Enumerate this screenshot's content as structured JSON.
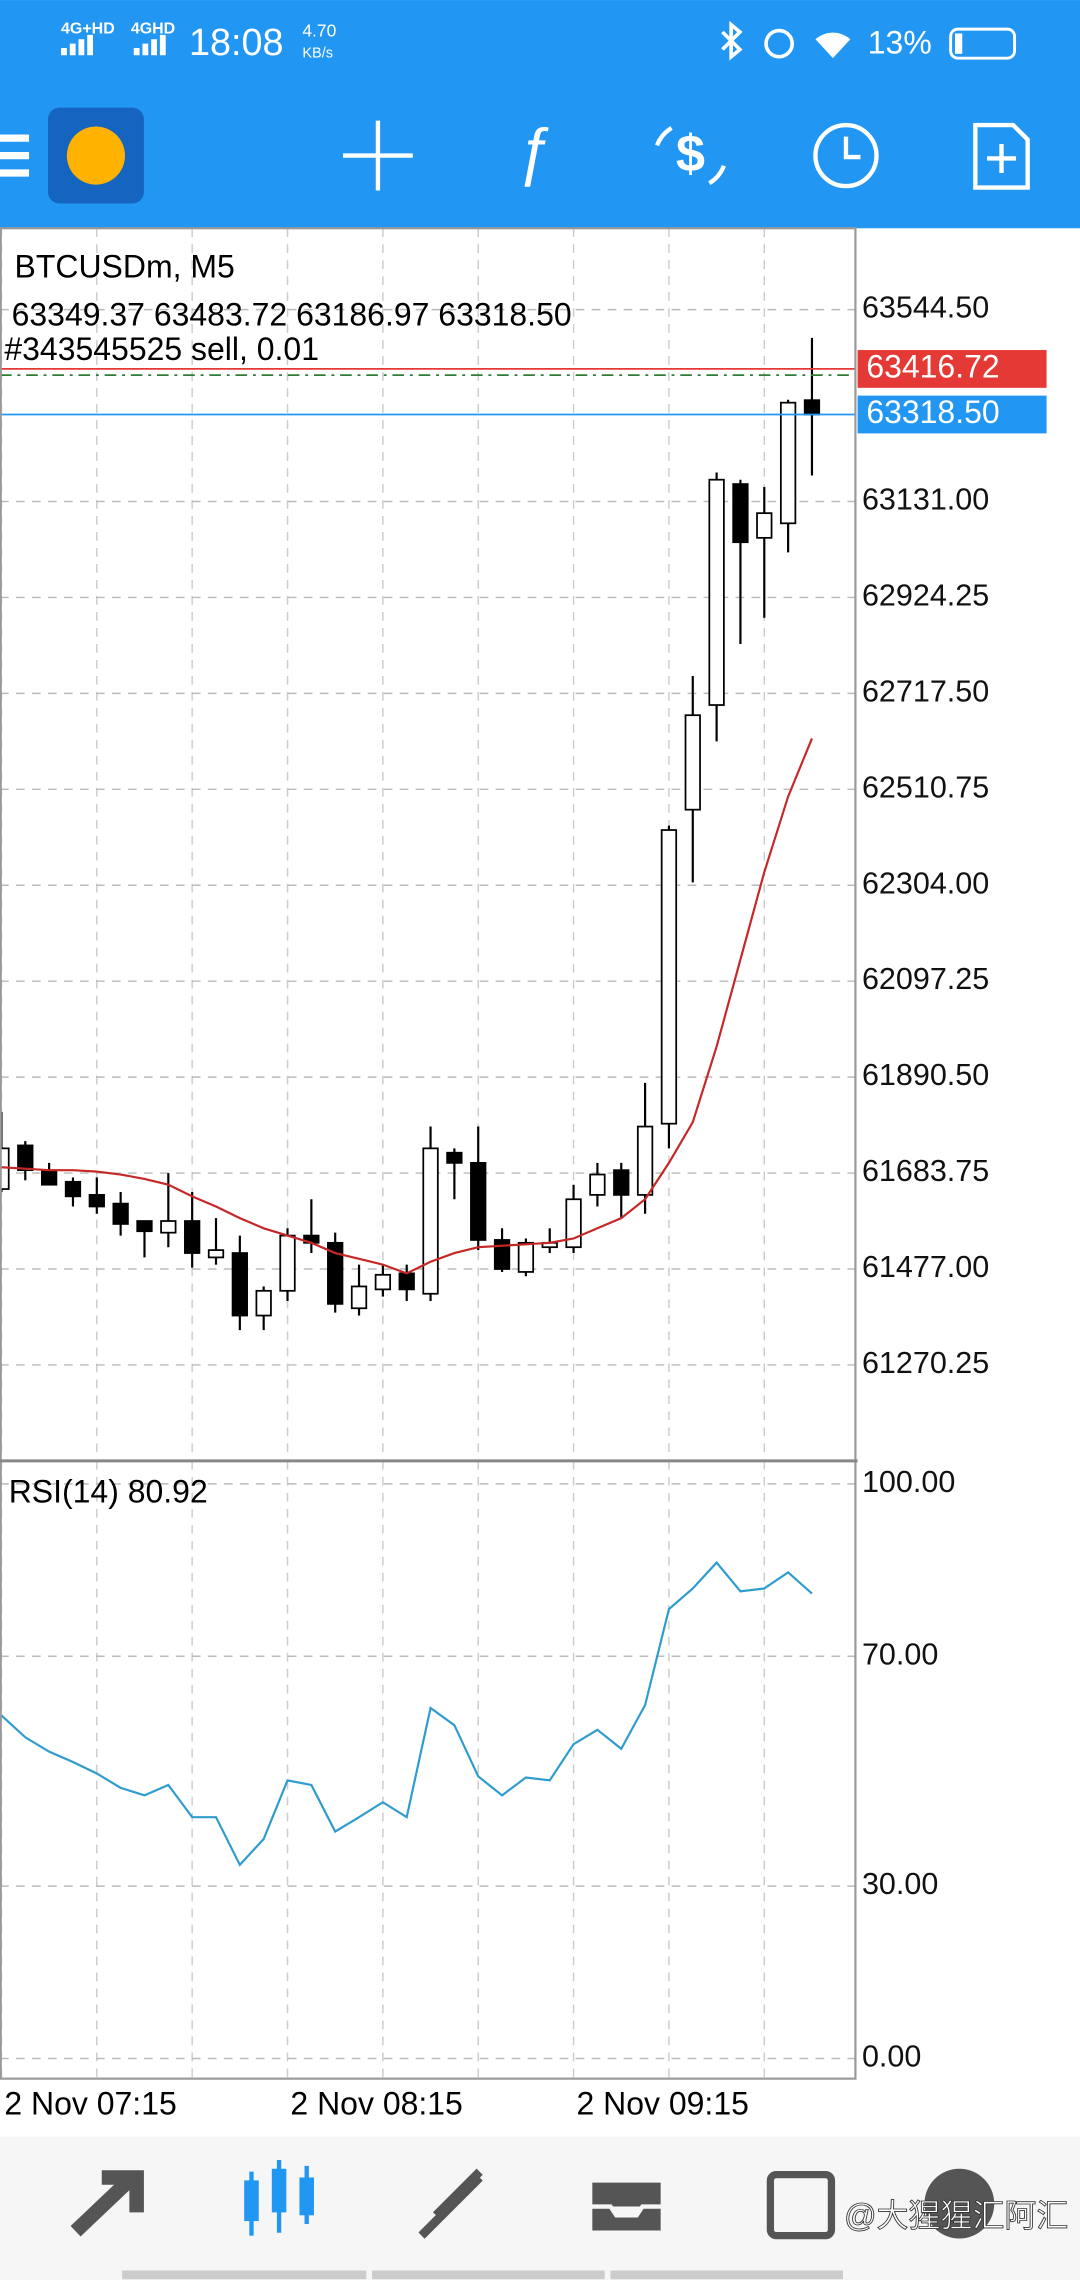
{
  "status_bar": {
    "network_1": "4G+HD",
    "network_2": "4GHD",
    "time": "18:08",
    "speed": "4.70",
    "speed_unit": "KB/s",
    "battery": "13%"
  },
  "chart_data": [
    {
      "type": "candlestick",
      "title": "BTCUSDm, M5",
      "ohlc_text": "63349.37 63483.72 63186.97 63318.50",
      "order_label": "#343545525 sell, 0.01",
      "categories": [
        "2 Nov 07:15",
        null,
        null,
        null,
        null,
        null,
        null,
        null,
        null,
        null,
        null,
        null,
        "2 Nov 08:15",
        null,
        null,
        null,
        null,
        null,
        null,
        null,
        null,
        null,
        null,
        null,
        "2 Nov 09:15",
        null,
        null,
        null,
        null,
        null,
        null,
        null,
        null,
        null,
        null
      ],
      "open": [
        61649.3,
        61743.3,
        61690.0,
        61664.9,
        61636.7,
        61617.9,
        61580.4,
        61555.3,
        61580.4,
        61502.0,
        61511.4,
        61376.7,
        61430.0,
        61549.0,
        61533.4,
        61392.4,
        61433.1,
        61467.6,
        61423.7,
        61727.6,
        61705.7,
        61539.6,
        61470.7,
        61524.0,
        61524.0,
        61636.7,
        61690.0,
        61636.7,
        61790.2,
        62466.9,
        62692.4,
        63168.6,
        63052.7,
        63084.0,
        63349.37
      ],
      "high": [
        61815.3,
        61752.7,
        61705.7,
        61674.3,
        61674.3,
        61643.0,
        61580.4,
        61683.7,
        61643.0,
        61586.6,
        61549.0,
        61439.4,
        61564.7,
        61627.3,
        61555.3,
        61486.4,
        61486.4,
        61486.4,
        61784.0,
        61737.0,
        61784.0,
        61564.7,
        61542.8,
        61564.7,
        61658.7,
        61705.7,
        61705.7,
        61878.0,
        62432.4,
        62755.1,
        63193.6,
        63178.0,
        63162.3,
        63350.3,
        63483.72
      ],
      "low": [
        61643.0,
        61668.1,
        61658.7,
        61611.7,
        61596.0,
        61549.0,
        61502.0,
        61524.0,
        61480.1,
        61486.4,
        61345.4,
        61345.4,
        61408.1,
        61511.4,
        61383.0,
        61376.7,
        61417.5,
        61408.1,
        61408.1,
        61627.3,
        61517.7,
        61470.7,
        61461.3,
        61511.4,
        61511.4,
        61611.7,
        61586.6,
        61596.0,
        61737.0,
        62310.3,
        62614.1,
        62824.0,
        62880.4,
        63021.4,
        63186.97
      ],
      "close": [
        61737.0,
        61690.0,
        61658.7,
        61633.6,
        61611.7,
        61574.1,
        61558.4,
        61580.4,
        61511.4,
        61517.7,
        61376.7,
        61430.0,
        61549.0,
        61533.4,
        61401.8,
        61439.4,
        61464.5,
        61433.1,
        61737.0,
        61705.7,
        61539.6,
        61477.0,
        61533.4,
        61533.4,
        61627.3,
        61680.6,
        61636.7,
        61784.0,
        62423.0,
        62670.5,
        63178.0,
        63043.3,
        63105.9,
        63344.0,
        63318.5
      ],
      "ma_values": [
        61696.3,
        61693.2,
        61690.0,
        61690.0,
        61686.9,
        61680.6,
        61671.2,
        61658.7,
        61633.6,
        61611.7,
        61586.6,
        61564.7,
        61549.0,
        61533.4,
        61511.4,
        61498.9,
        61486.4,
        61467.6,
        61492.6,
        61511.4,
        61524.0,
        61527.1,
        61530.2,
        61533.4,
        61542.8,
        61564.7,
        61586.6,
        61627.3,
        61705.7,
        61793.4,
        61956.3,
        62144.2,
        62332.2,
        62495.1,
        62620.4
      ],
      "ma_color": "#c62828",
      "up_color": "#ffffff",
      "down_color": "#000000",
      "ylim": [
        61063.5,
        63719.9
      ],
      "yticks": [
        {
          "value": 63544.5,
          "label": "63544.50"
        },
        {
          "value": 63131,
          "label": "63131.00"
        },
        {
          "value": 62924.25,
          "label": "62924.25"
        },
        {
          "value": 62717.5,
          "label": "62717.50"
        },
        {
          "value": 62510.75,
          "label": "62510.75"
        },
        {
          "value": 62304,
          "label": "62304.00"
        },
        {
          "value": 62097.25,
          "label": "62097.25"
        },
        {
          "value": 61890.5,
          "label": "61890.50"
        },
        {
          "value": 61683.75,
          "label": "61683.75"
        },
        {
          "value": 61477,
          "label": "61477.00"
        },
        {
          "value": 61270.25,
          "label": "61270.25"
        }
      ],
      "price_lines": [
        {
          "value": 63416.72,
          "label": "63416.72",
          "color": "#e53935"
        },
        {
          "value": 63403.5,
          "color": "#2e7d32",
          "dashed": true
        },
        {
          "value": 63318.5,
          "label": "63318.50",
          "color": "#2196f3"
        }
      ],
      "grid": true
    },
    {
      "type": "line",
      "title": "RSI(14) 80.92",
      "color": "#2e9ccf",
      "values": [
        59.7,
        55.9,
        53.4,
        51.6,
        49.6,
        47.1,
        45.8,
        47.6,
        42.0,
        42.0,
        33.7,
        38.2,
        48.4,
        47.6,
        39.5,
        42.0,
        44.6,
        42.0,
        61.0,
        58.0,
        49.1,
        45.8,
        48.9,
        48.4,
        54.7,
        57.2,
        53.9,
        61.5,
        78.2,
        81.8,
        86.3,
        81.3,
        81.8,
        84.6,
        80.92
      ],
      "ylim": [
        -3.5,
        104
      ],
      "yticks": [
        {
          "value": 100,
          "label": "100.00"
        },
        {
          "value": 70,
          "label": "70.00"
        },
        {
          "value": 30,
          "label": "30.00"
        },
        {
          "value": 0,
          "label": "0.00"
        }
      ],
      "grid": true
    }
  ],
  "watermark": "@大猩猩汇阿汇"
}
